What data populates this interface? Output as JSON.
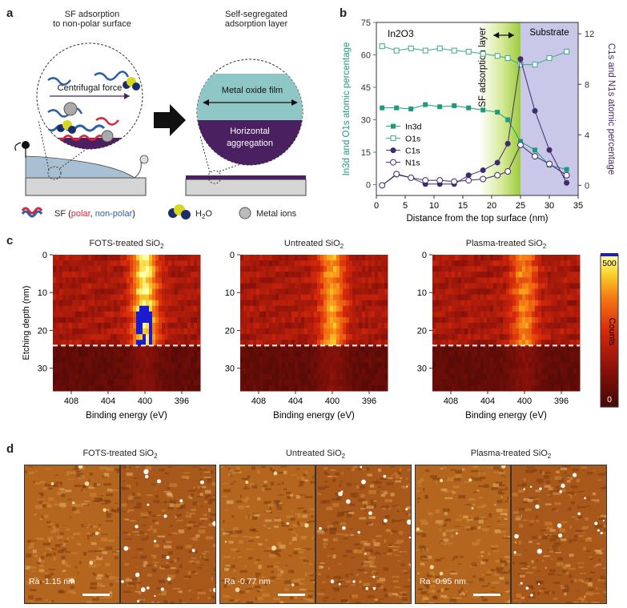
{
  "panels": {
    "a": "a",
    "b": "b",
    "c": "c",
    "d": "d"
  },
  "panel_a": {
    "left_title_1": "SF adsorption",
    "left_title_2": "to non-polar surface",
    "right_title_1": "Self-segregated",
    "right_title_2": "adsorption layer",
    "centrifugal": "Centrifugal force",
    "oxide_film": "Metal oxide film",
    "horiz_1": "Horizontal",
    "horiz_2": "aggregation",
    "legend_sf": "SF (",
    "legend_polar": "polar",
    "legend_comma": ", ",
    "legend_nonpolar": "non-polar",
    "legend_close": ")",
    "legend_h2o": "H",
    "legend_h2o_sub": "2",
    "legend_h2o_end": "O",
    "legend_metal": "Metal ions",
    "colors": {
      "polar": "#d9263b",
      "nonpolar": "#2d5fa8",
      "film": "#8fc7c6",
      "aggregation": "#4a2060"
    }
  },
  "chart_data": [
    {
      "type": "line",
      "panel": "b",
      "xlabel": "Distance from the top surface (nm)",
      "ylabel_left": "In3d and O1s atomic percentage",
      "ylabel_right": "C1s and N1s atomic percentage",
      "xlim": [
        0,
        35
      ],
      "ylim_left": [
        -5,
        75
      ],
      "ylim_right": [
        -0.8,
        12.9
      ],
      "xticks": [
        0,
        5,
        10,
        15,
        20,
        25,
        30,
        35
      ],
      "yticks_left": [
        0,
        15,
        30,
        45,
        60,
        75
      ],
      "yticks_right": [
        0,
        4,
        8,
        12
      ],
      "region_labels": {
        "top": "In2O3",
        "layer": "SF adsorption layer",
        "substrate": "Substrate"
      },
      "regions": {
        "layer": [
          17.8,
          25
        ],
        "substrate": [
          25,
          35
        ]
      },
      "series": [
        {
          "name": "In3d",
          "axis": "left",
          "marker": "square-filled",
          "color": "#1f9a7e",
          "x": [
            1,
            3.5,
            6,
            8.5,
            11,
            13.5,
            16,
            18.5,
            21,
            22.8,
            25,
            27.5,
            30,
            33
          ],
          "y": [
            35.5,
            35.5,
            35,
            37,
            36,
            36.5,
            35.5,
            34.5,
            33.5,
            30,
            20,
            16,
            9,
            7
          ]
        },
        {
          "name": "O1s",
          "axis": "left",
          "marker": "square-open",
          "color": "#3aa88e",
          "x": [
            1,
            3.5,
            6,
            8.5,
            11,
            13.5,
            16,
            18.5,
            21,
            22.8,
            25,
            27.5,
            30,
            33
          ],
          "y": [
            64,
            62,
            63,
            62,
            63,
            62,
            61.5,
            60.5,
            59.5,
            58.5,
            55.5,
            55.5,
            58.5,
            61.5
          ]
        },
        {
          "name": "C1s",
          "axis": "right",
          "marker": "circle-filled",
          "color": "#3f2970",
          "x": [
            1,
            3.5,
            6,
            8.5,
            11,
            13.5,
            16,
            18.5,
            21,
            22.8,
            25,
            27.5,
            30,
            33
          ],
          "y": [
            0,
            0.85,
            0.6,
            0.1,
            0.1,
            0.1,
            0.8,
            1.2,
            1.8,
            3.3,
            10,
            5.9,
            2.8,
            0.2
          ]
        },
        {
          "name": "N1s",
          "axis": "right",
          "marker": "circle-open",
          "color": "#3f2970",
          "x": [
            1,
            3.5,
            6,
            8.5,
            11,
            13.5,
            16,
            18.5,
            21,
            22.8,
            25,
            27.5,
            30,
            33
          ],
          "y": [
            0,
            0.9,
            0.6,
            0.4,
            0.4,
            0.3,
            0.4,
            0.5,
            0.8,
            1.1,
            3.2,
            2.3,
            1.7,
            0.8
          ]
        }
      ]
    },
    {
      "type": "heatmap",
      "panel": "c",
      "xlabel": "Binding energy (eV)",
      "ylabel": "Etching depth (nm)",
      "xlim": [
        410,
        394
      ],
      "ylim": [
        0,
        36
      ],
      "xticks": [
        408,
        404,
        400,
        396
      ],
      "yticks": [
        0,
        10,
        20,
        30
      ],
      "colorbar": {
        "label": "Counts",
        "ticks": [
          0,
          500
        ],
        "range": [
          0,
          520
        ]
      },
      "interface_depth": 24,
      "titles": [
        "FOTS-treated SiO2",
        "Untreated SiO2",
        "Plasma-treated SiO2"
      ],
      "peak_center_eV": 400,
      "peak_intensity": [
        1.0,
        0.72,
        0.62
      ]
    }
  ],
  "panel_c": {
    "titles": [
      {
        "main": "FOTS-treated SiO",
        "sub": "2"
      },
      {
        "main": "Untreated SiO",
        "sub": "2"
      },
      {
        "main": "Plasma-treated SiO",
        "sub": "2"
      }
    ],
    "xlabel": "Binding energy (eV)",
    "ylabel": "Etching depth (nm)",
    "colorbar_label": "Counts",
    "colorbar_max": "500",
    "colorbar_min": "0"
  },
  "panel_d": {
    "titles": [
      {
        "main": "FOTS-treated SiO",
        "sub": "2"
      },
      {
        "main": "Untreated SiO",
        "sub": "2"
      },
      {
        "main": "Plasma-treated SiO",
        "sub": "2"
      }
    ],
    "roughness": [
      "Ra -1.15 nm",
      "Ra -0.77 nm",
      "Ra -0.95 nm"
    ]
  }
}
